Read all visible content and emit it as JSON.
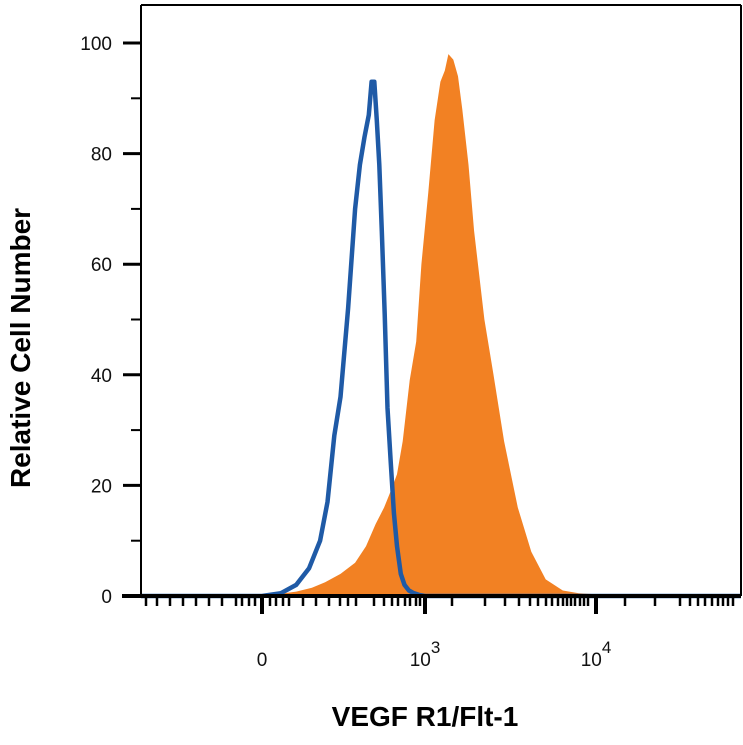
{
  "chart_data": {
    "type": "area",
    "title": "",
    "xlabel": "VEGF R1/Flt-1",
    "ylabel": "Relative Cell Number",
    "x_scale": "biexponential",
    "x_ticks": [
      {
        "label": "0",
        "value": 0
      },
      {
        "label": "10",
        "sup": "3",
        "value": 1000
      },
      {
        "label": "10",
        "sup": "4",
        "value": 10000
      }
    ],
    "y_ticks": [
      "0",
      "20",
      "40",
      "60",
      "80",
      "100"
    ],
    "ylim": [
      0,
      100
    ],
    "grid": false,
    "legend": "none",
    "series": [
      {
        "style": "filled",
        "color": "#f28123",
        "x": [
          0,
          30,
          80,
          130,
          180,
          250,
          330,
          400,
          470,
          540,
          600,
          660,
          720,
          800,
          880,
          950,
          1050,
          1150,
          1250,
          1330,
          1400,
          1500,
          1600,
          1700,
          1850,
          2000,
          2300,
          2600,
          3000,
          3600,
          4300,
          5200,
          6500,
          8000,
          10000,
          15000,
          30000,
          60000
        ],
        "values": [
          0,
          0.3,
          0.8,
          1.5,
          2.5,
          4,
          6,
          9,
          13,
          16,
          19,
          22,
          28,
          39,
          46,
          60,
          73,
          86,
          93,
          95,
          98,
          97,
          94,
          88,
          78,
          66,
          50,
          40,
          28,
          16,
          8,
          3,
          1,
          0.5,
          0.3,
          0.2,
          0,
          0
        ]
      },
      {
        "style": "outline",
        "color": "#1f5aa6",
        "x": [
          0,
          40,
          80,
          120,
          160,
          190,
          220,
          250,
          290,
          330,
          360,
          390,
          420,
          440,
          460,
          480,
          500,
          520,
          545,
          570,
          600,
          630,
          660,
          700,
          740,
          790,
          850,
          920,
          1000,
          10000,
          60000
        ],
        "values": [
          0,
          0.5,
          2,
          5,
          10,
          17,
          29,
          36,
          52,
          70,
          78,
          83,
          87,
          93,
          93,
          86,
          78,
          66,
          51,
          34,
          24,
          15,
          9,
          4,
          2,
          1,
          0.5,
          0.2,
          0,
          0,
          0
        ]
      }
    ]
  }
}
